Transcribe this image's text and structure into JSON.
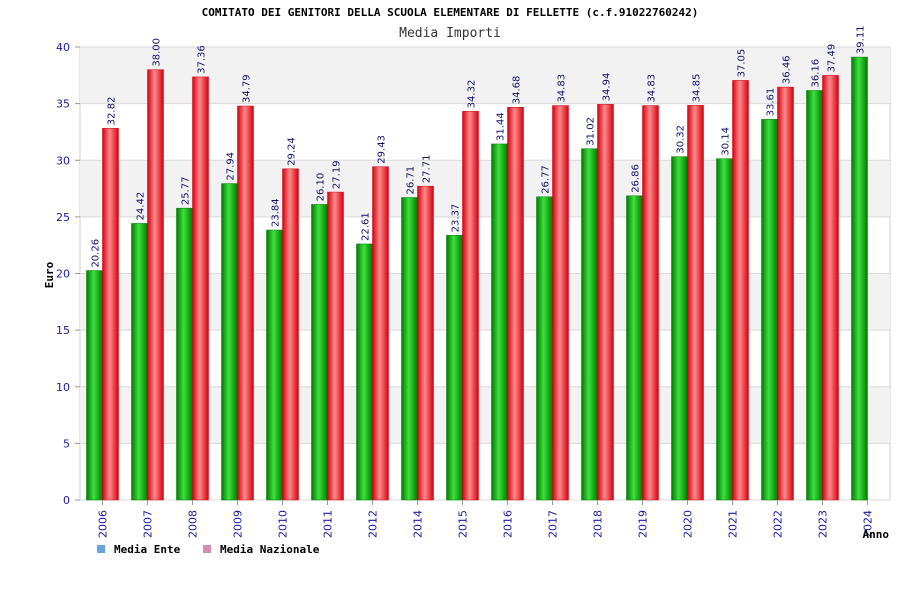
{
  "colors": {
    "ente_dark": "#007a00",
    "ente_light": "#3ee03e",
    "nazionale_dark": "#d40010",
    "nazionale_light": "#ff8a8a",
    "legend_ente": "#66a3e0",
    "legend_nazionale": "#d98ab5",
    "band": "#f2f2f2",
    "grid": "#d9d9d9"
  },
  "chart_data": {
    "type": "bar",
    "title": "COMITATO DEI GENITORI DELLA SCUOLA ELEMENTARE DI FELLETTE (c.f.91022760242)",
    "subtitle": "Media Importi",
    "xlabel": "Anno",
    "ylabel": "Euro",
    "ylim": [
      0,
      40
    ],
    "yticks": [
      0,
      5,
      10,
      15,
      20,
      25,
      30,
      35,
      40
    ],
    "ytick_labels": [
      "0",
      "5",
      "10",
      "15",
      "20",
      "25",
      "30",
      "35",
      "40"
    ],
    "categories": [
      "2006",
      "2007",
      "2008",
      "2009",
      "2010",
      "2011",
      "2012",
      "2014",
      "2015",
      "2016",
      "2017",
      "2018",
      "2019",
      "2020",
      "2021",
      "2022",
      "2023",
      "2024"
    ],
    "series": [
      {
        "name": "Media Ente",
        "values": [
          20.26,
          24.42,
          25.77,
          27.94,
          23.84,
          26.1,
          22.61,
          26.71,
          23.37,
          31.44,
          26.77,
          31.02,
          26.86,
          30.32,
          30.14,
          33.61,
          36.16,
          39.11
        ],
        "labels": [
          "20.26",
          "24.42",
          "25.77",
          "27.94",
          "23.84",
          "26.10",
          "22.61",
          "26.71",
          "23.37",
          "31.44",
          "26.77",
          "31.02",
          "26.86",
          "30.32",
          "30.14",
          "33.61",
          "36.16",
          "39.11"
        ]
      },
      {
        "name": "Media Nazionale",
        "values": [
          32.82,
          38.0,
          37.36,
          34.79,
          29.24,
          27.19,
          29.43,
          27.71,
          34.32,
          34.68,
          34.83,
          34.94,
          34.83,
          34.85,
          37.05,
          36.46,
          37.49,
          null
        ],
        "labels": [
          "32.82",
          "38.00",
          "37.36",
          "34.79",
          "29.24",
          "27.19",
          "29.43",
          "27.71",
          "34.32",
          "34.68",
          "34.83",
          "34.94",
          "34.83",
          "34.85",
          "37.05",
          "36.46",
          "37.49",
          null
        ]
      }
    ],
    "legend": [
      "Media Ente",
      "Media Nazionale"
    ],
    "legend_position": "bottom-left",
    "grid": true
  }
}
